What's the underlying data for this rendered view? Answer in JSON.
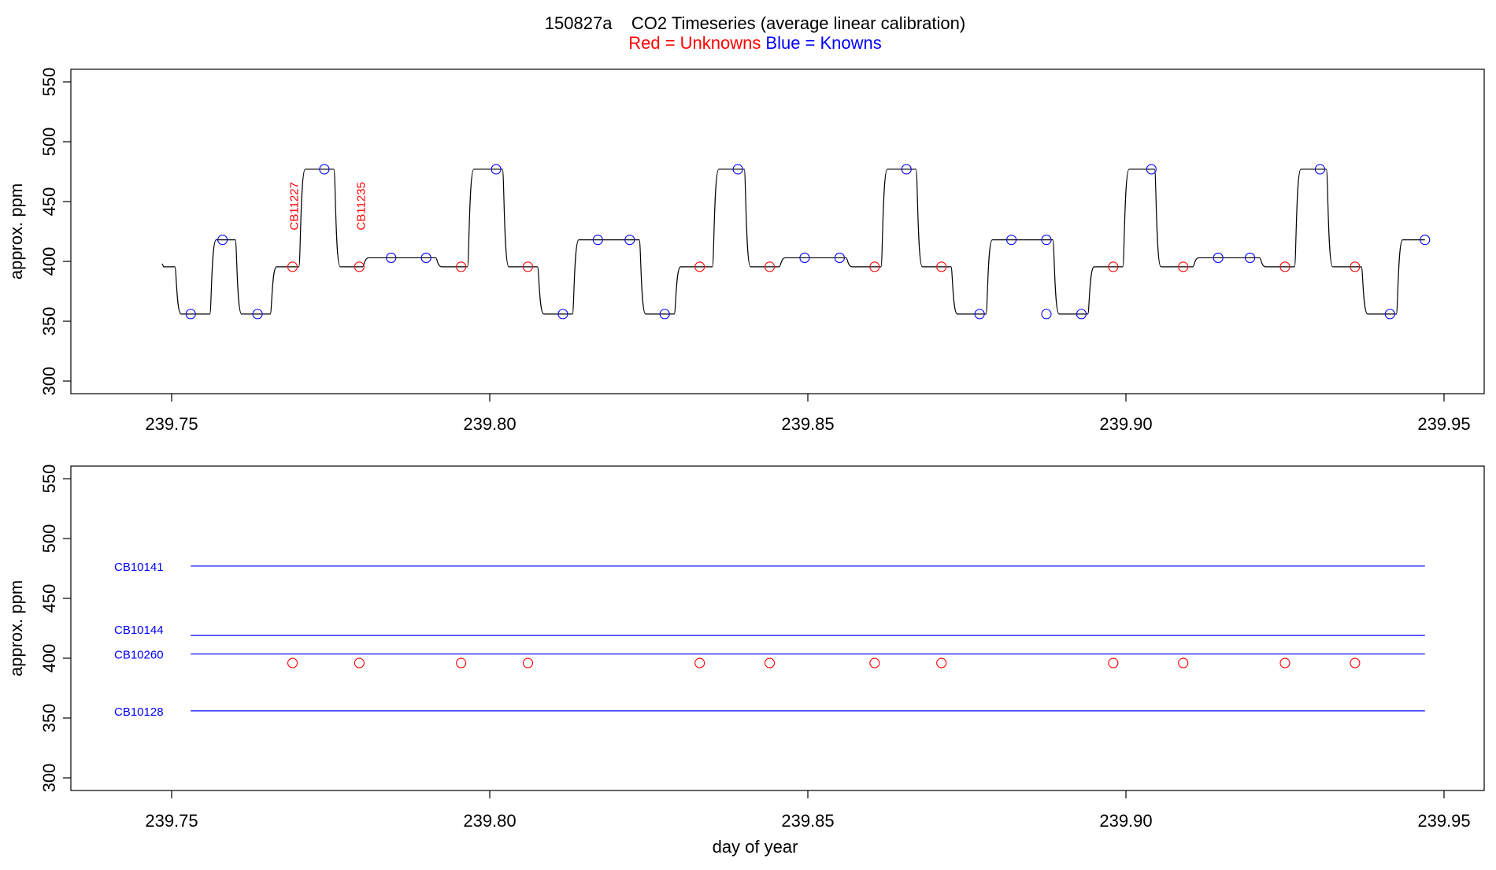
{
  "figure": {
    "title": "150827a    CO2 Timeseries (average linear calibration)",
    "legend": {
      "red_label": "Red = Unknowns",
      "blue_label": "Blue = Knowns",
      "red_color": "#ff0000",
      "blue_color": "#0000ff"
    }
  },
  "chart_data": [
    {
      "type": "line",
      "panel": "top",
      "ylabel": "approx. ppm",
      "xlabel": "",
      "xlim": [
        239.75,
        239.95
      ],
      "ylim": [
        300,
        550
      ],
      "x_ticks": [
        "239.75",
        "239.80",
        "239.85",
        "239.90",
        "239.95"
      ],
      "y_ticks": [
        "300",
        "350",
        "400",
        "450",
        "500",
        "550"
      ],
      "trace": {
        "color": "#000000",
        "segments": [
          [
            239.7485,
            239.751,
            395.5
          ],
          [
            239.751,
            239.7565,
            356
          ],
          [
            239.7565,
            239.7605,
            418
          ],
          [
            239.7605,
            239.766,
            356
          ],
          [
            239.766,
            239.7705,
            395.5
          ],
          [
            239.7705,
            239.776,
            477
          ],
          [
            239.776,
            239.7805,
            395.5
          ],
          [
            239.7805,
            239.792,
            403
          ],
          [
            239.792,
            239.797,
            395.5
          ],
          [
            239.797,
            239.8025,
            477
          ],
          [
            239.8025,
            239.808,
            395.5
          ],
          [
            239.808,
            239.8135,
            356
          ],
          [
            239.8135,
            239.824,
            418
          ],
          [
            239.824,
            239.8295,
            356
          ],
          [
            239.8295,
            239.8355,
            395.5
          ],
          [
            239.8355,
            239.8405,
            477
          ],
          [
            239.8405,
            239.846,
            395.5
          ],
          [
            239.846,
            239.8565,
            403
          ],
          [
            239.8565,
            239.862,
            395.5
          ],
          [
            239.862,
            239.8675,
            477
          ],
          [
            239.8675,
            239.873,
            395.5
          ],
          [
            239.873,
            239.8785,
            356
          ],
          [
            239.8785,
            239.889,
            418
          ],
          [
            239.889,
            239.8945,
            356
          ],
          [
            239.8945,
            239.9,
            395.5
          ],
          [
            239.9,
            239.905,
            477
          ],
          [
            239.905,
            239.911,
            395.5
          ],
          [
            239.911,
            239.9215,
            403
          ],
          [
            239.9215,
            239.927,
            395.5
          ],
          [
            239.927,
            239.932,
            477
          ],
          [
            239.932,
            239.9375,
            395.5
          ],
          [
            239.9375,
            239.943,
            356
          ],
          [
            239.943,
            239.9475,
            418
          ]
        ]
      },
      "knowns": [
        [
          239.753,
          356
        ],
        [
          239.758,
          418
        ],
        [
          239.7635,
          356
        ],
        [
          239.774,
          477
        ],
        [
          239.7845,
          403
        ],
        [
          239.79,
          403
        ],
        [
          239.801,
          477
        ],
        [
          239.8115,
          356
        ],
        [
          239.817,
          418
        ],
        [
          239.822,
          418
        ],
        [
          239.8275,
          356
        ],
        [
          239.839,
          477
        ],
        [
          239.8495,
          403
        ],
        [
          239.855,
          403
        ],
        [
          239.8655,
          477
        ],
        [
          239.877,
          356
        ],
        [
          239.882,
          418
        ],
        [
          239.8875,
          356
        ],
        [
          239.8875,
          418
        ],
        [
          239.893,
          356
        ],
        [
          239.904,
          477
        ],
        [
          239.9145,
          403
        ],
        [
          239.9195,
          403
        ],
        [
          239.9305,
          477
        ],
        [
          239.9415,
          356
        ],
        [
          239.947,
          418
        ]
      ],
      "unknowns": [
        [
          239.769,
          395.5
        ],
        [
          239.7795,
          395.5
        ],
        [
          239.7955,
          395.5
        ],
        [
          239.806,
          395.5
        ],
        [
          239.833,
          395.5
        ],
        [
          239.844,
          395.5
        ],
        [
          239.8605,
          395.5
        ],
        [
          239.871,
          395.5
        ],
        [
          239.898,
          395.5
        ],
        [
          239.909,
          395.5
        ],
        [
          239.925,
          395.5
        ],
        [
          239.936,
          395.5
        ]
      ],
      "annotations": [
        {
          "text": "CB11227",
          "x": 239.769,
          "y": 426
        },
        {
          "text": "CB11235",
          "x": 239.7795,
          "y": 426
        }
      ]
    },
    {
      "type": "line",
      "panel": "bottom",
      "ylabel": "approx. ppm",
      "xlabel": "day of year",
      "xlim": [
        239.75,
        239.95
      ],
      "ylim": [
        300,
        550
      ],
      "x_ticks": [
        "239.75",
        "239.80",
        "239.85",
        "239.90",
        "239.95"
      ],
      "y_ticks": [
        "300",
        "350",
        "400",
        "450",
        "500",
        "550"
      ],
      "series": [
        {
          "name": "CB10141",
          "x": [
            239.753,
            239.947
          ],
          "values": [
            477,
            477
          ]
        },
        {
          "name": "CB10144",
          "x": [
            239.753,
            239.947
          ],
          "values": [
            419,
            419
          ]
        },
        {
          "name": "CB10260",
          "x": [
            239.753,
            239.947
          ],
          "values": [
            403.5,
            403.5
          ]
        },
        {
          "name": "CB10128",
          "x": [
            239.753,
            239.947
          ],
          "values": [
            356,
            356
          ]
        }
      ],
      "series_color": "#0000ff",
      "unknowns": [
        [
          239.769,
          396
        ],
        [
          239.7795,
          396
        ],
        [
          239.7955,
          396
        ],
        [
          239.806,
          396
        ],
        [
          239.833,
          396
        ],
        [
          239.844,
          396
        ],
        [
          239.8605,
          396
        ],
        [
          239.871,
          396
        ],
        [
          239.898,
          396
        ],
        [
          239.909,
          396
        ],
        [
          239.925,
          396
        ],
        [
          239.936,
          396
        ]
      ]
    }
  ]
}
